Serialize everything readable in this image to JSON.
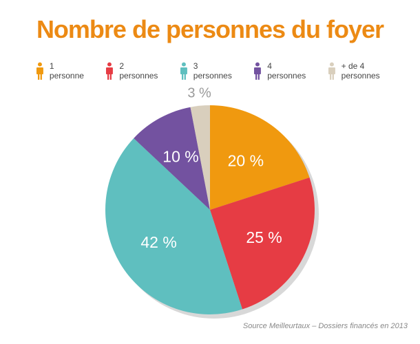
{
  "title": "Nombre de personnes du foyer",
  "source": "Source Meilleurtaux – Dossiers financés en 2013",
  "chart_data": {
    "type": "pie",
    "title": "Nombre de personnes du foyer",
    "legend_position": "top",
    "categories": [
      "1 personne",
      "2 personnes",
      "3 personnes",
      "4 personnes",
      "+ de 4 personnes"
    ],
    "values": [
      20,
      25,
      42,
      10,
      3
    ],
    "labels": [
      "20 %",
      "25 %",
      "42 %",
      "10 %",
      "3 %"
    ],
    "colors": [
      "#f0990f",
      "#e63c44",
      "#5fbfbf",
      "#7352a0",
      "#d9cfbd"
    ]
  }
}
